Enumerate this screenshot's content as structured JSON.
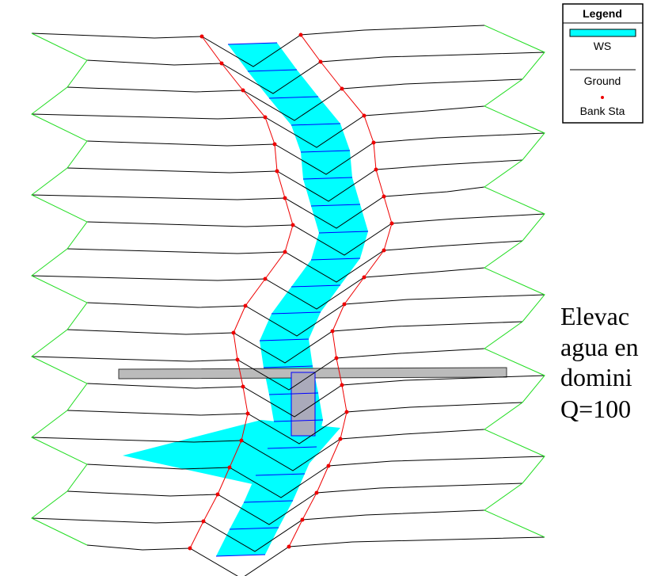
{
  "legend": {
    "title": "Legend",
    "items": [
      "WS",
      "Ground",
      "Bank Sta"
    ]
  },
  "annotation": {
    "lines": [
      "Elevac",
      "agua en",
      "domini",
      "Q=100"
    ]
  }
}
